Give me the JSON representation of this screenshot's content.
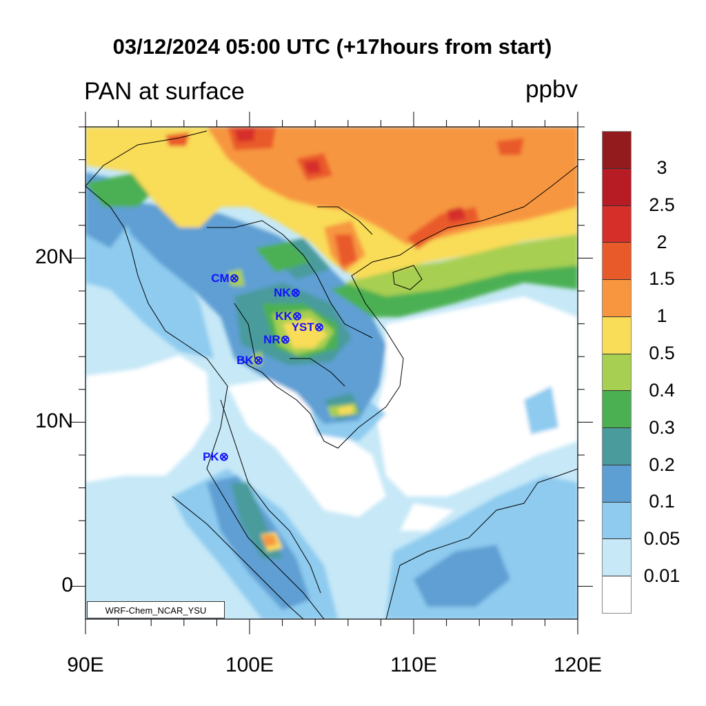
{
  "title": "03/12/2024 05:00 UTC (+17hours from start)",
  "subtitle": "PAN at surface",
  "units": "ppbv",
  "watermark": "WRF-Chem_NCAR_YSU",
  "axes": {
    "lon_range": [
      90,
      120
    ],
    "lat_range": [
      -2,
      28
    ],
    "lon_ticks": [
      {
        "value": 90,
        "label": "90E"
      },
      {
        "value": 100,
        "label": "100E"
      },
      {
        "value": 110,
        "label": "110E"
      },
      {
        "value": 120,
        "label": "120E"
      }
    ],
    "lat_ticks": [
      {
        "value": 0,
        "label": "0"
      },
      {
        "value": 10,
        "label": "10N"
      },
      {
        "value": 20,
        "label": "20N"
      }
    ]
  },
  "colorbar": {
    "colors": [
      "#ffffff",
      "#c6e8f7",
      "#8ecbef",
      "#5e9fd3",
      "#4a9b9c",
      "#4bb052",
      "#a7cf51",
      "#f9dc58",
      "#f7963f",
      "#e95a2b",
      "#d62f2a",
      "#b71c25",
      "#931a1d"
    ],
    "labels": [
      "0.01",
      "0.05",
      "0.1",
      "0.2",
      "0.3",
      "0.4",
      "0.5",
      "1",
      "1.5",
      "2",
      "2.5",
      "3"
    ]
  },
  "stations": [
    {
      "label": "CM",
      "lon": 98.99,
      "lat": 18.75
    },
    {
      "label": "NK",
      "lon": 102.73,
      "lat": 17.86
    },
    {
      "label": "KK",
      "lon": 102.82,
      "lat": 16.44
    },
    {
      "label": "YST",
      "lon": 104.16,
      "lat": 15.77
    },
    {
      "label": "NR",
      "lon": 102.1,
      "lat": 15.01
    },
    {
      "label": "BK",
      "lon": 100.46,
      "lat": 13.75
    },
    {
      "label": "PK",
      "lon": 98.36,
      "lat": 7.88
    }
  ],
  "station_marker": "⊗"
}
